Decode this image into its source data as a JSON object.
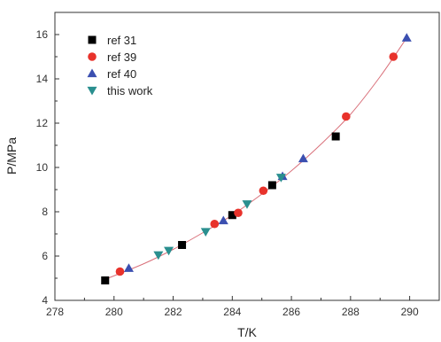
{
  "chart_data": {
    "type": "scatter",
    "title": "",
    "xlabel": "T/K",
    "ylabel": "P/MPa",
    "xlim": [
      278,
      291
    ],
    "ylim": [
      4,
      17
    ],
    "xticks": [
      278,
      280,
      282,
      284,
      286,
      288,
      290
    ],
    "yticks": [
      4,
      6,
      8,
      10,
      12,
      14,
      16
    ],
    "grid": false,
    "legend_position": "top-left",
    "series": [
      {
        "name": "ref 31",
        "marker": "square",
        "color": "#000000",
        "points": [
          [
            279.7,
            4.9
          ],
          [
            282.3,
            6.5
          ],
          [
            284.0,
            7.85
          ],
          [
            285.35,
            9.2
          ],
          [
            287.5,
            11.4
          ]
        ]
      },
      {
        "name": "ref 39",
        "marker": "circle",
        "color": "#e8322b",
        "points": [
          [
            280.2,
            5.3
          ],
          [
            283.4,
            7.45
          ],
          [
            284.2,
            7.95
          ],
          [
            285.05,
            8.95
          ],
          [
            287.85,
            12.3
          ],
          [
            289.45,
            15.0
          ]
        ]
      },
      {
        "name": "ref 40",
        "marker": "triangle-up",
        "color": "#3b4fb0",
        "points": [
          [
            280.5,
            5.45
          ],
          [
            283.7,
            7.6
          ],
          [
            285.7,
            9.6
          ],
          [
            286.4,
            10.4
          ],
          [
            289.9,
            15.85
          ]
        ]
      },
      {
        "name": "this work",
        "marker": "triangle-down",
        "color": "#2a8f8f",
        "points": [
          [
            281.5,
            6.05
          ],
          [
            281.85,
            6.25
          ],
          [
            283.1,
            7.1
          ],
          [
            284.5,
            8.35
          ],
          [
            285.65,
            9.55
          ]
        ]
      }
    ],
    "fit_curve": {
      "color": "#d9707a",
      "x": [
        279.7,
        281.0,
        282.0,
        283.0,
        284.0,
        285.0,
        286.0,
        287.0,
        288.0,
        289.0,
        289.9
      ],
      "y": [
        4.95,
        5.65,
        6.3,
        7.05,
        7.85,
        8.8,
        9.85,
        11.05,
        12.4,
        14.1,
        15.85
      ]
    }
  }
}
